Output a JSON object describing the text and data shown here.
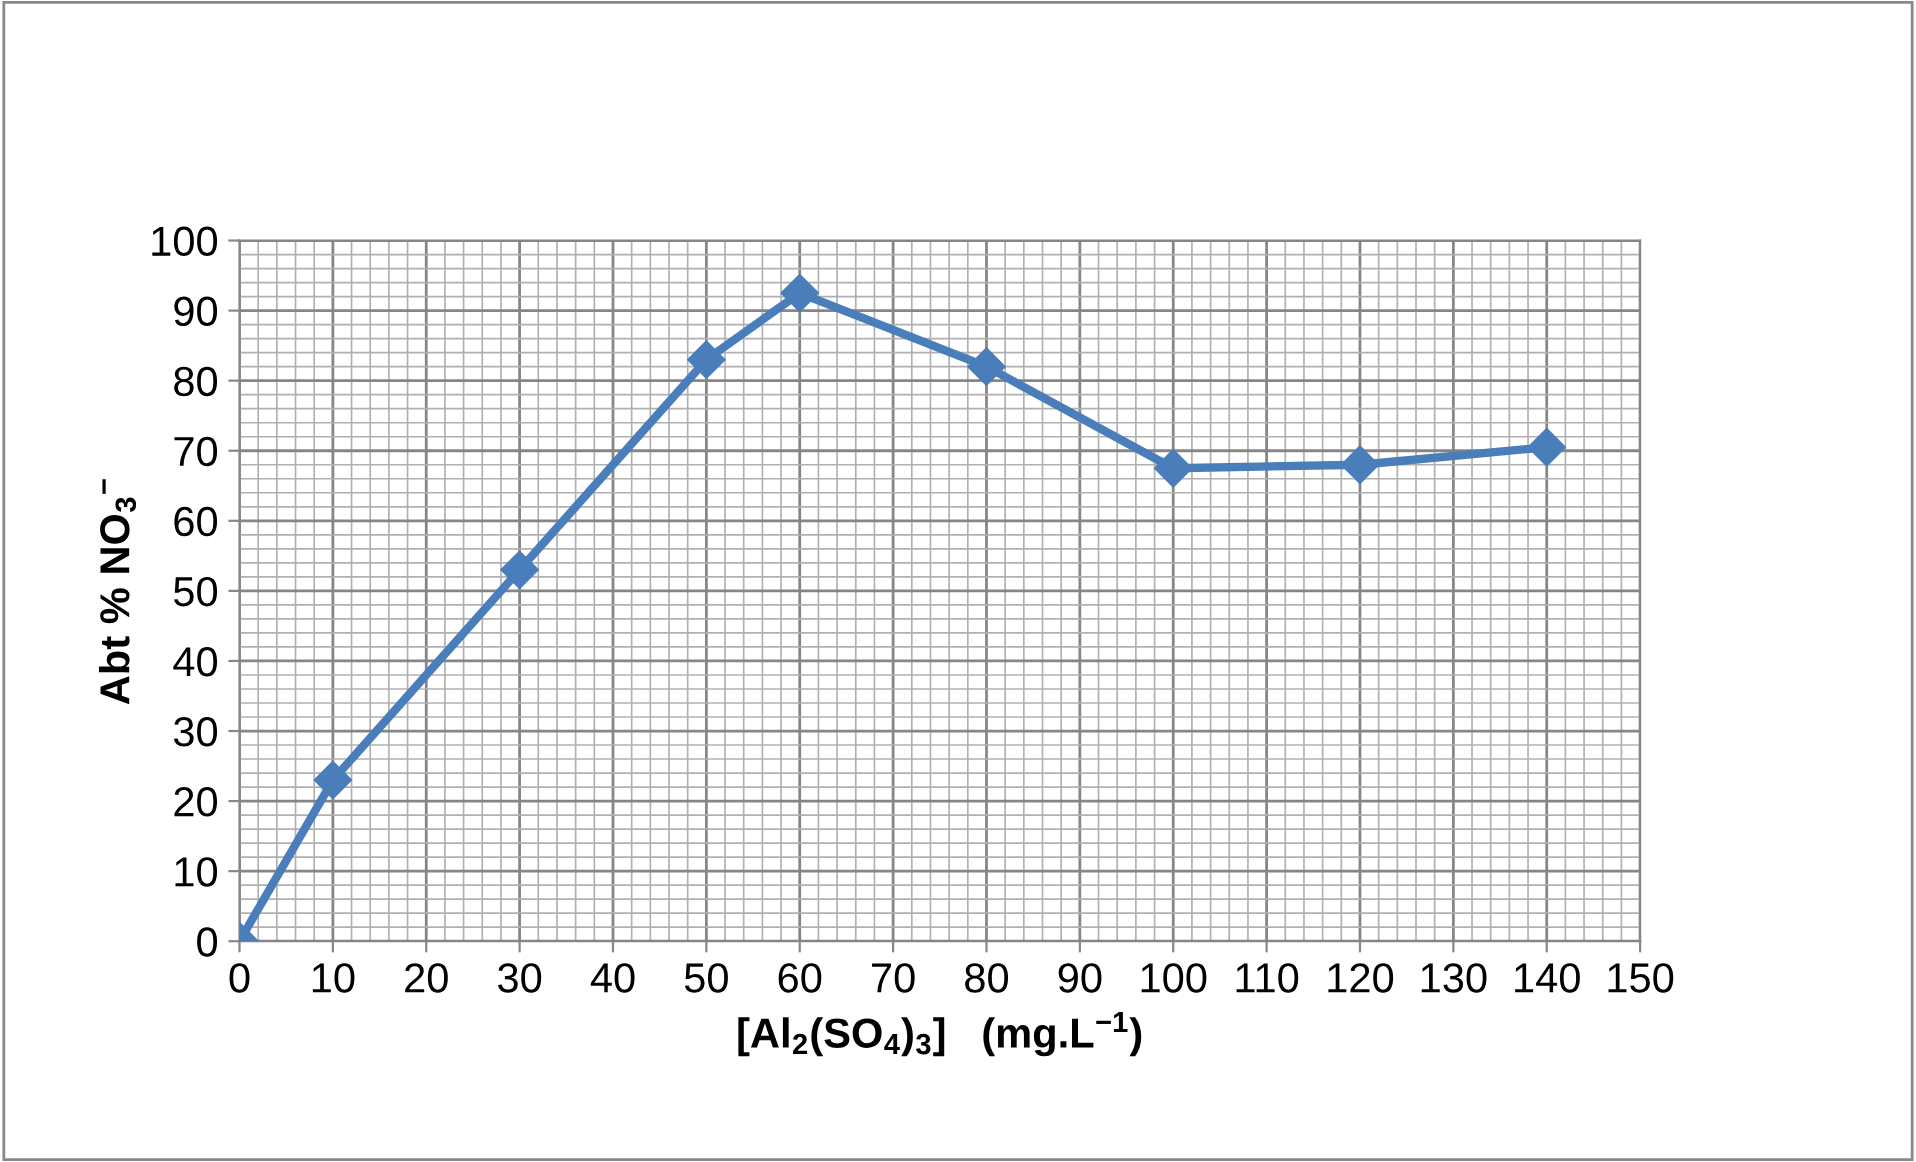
{
  "chart_data": {
    "type": "line",
    "xlabel": "[Al$_{2}$(SO$_{4}$)$_{3}$]   (mg.L$^{−1}$)",
    "ylabel": "Abt % NO$_{3}$$^{−}$",
    "series": [
      {
        "color": "#4a7ebb",
        "x": [
          0,
          10,
          30,
          50,
          60,
          80,
          100,
          120,
          140
        ],
        "values": [
          0,
          23,
          53,
          83,
          92.5,
          82,
          67.5,
          68,
          70.5
        ]
      }
    ],
    "xlim": [
      0,
      150
    ],
    "xticks": [
      0,
      10,
      20,
      30,
      40,
      50,
      60,
      70,
      80,
      90,
      100,
      110,
      120,
      130,
      140,
      150
    ],
    "ylim": [
      0,
      100
    ],
    "yticks": [
      0,
      10,
      20,
      30,
      40,
      50,
      60,
      70,
      80,
      90,
      100
    ],
    "grid": true,
    "marker": "diamond",
    "line_style": "solid",
    "legend": false
  }
}
